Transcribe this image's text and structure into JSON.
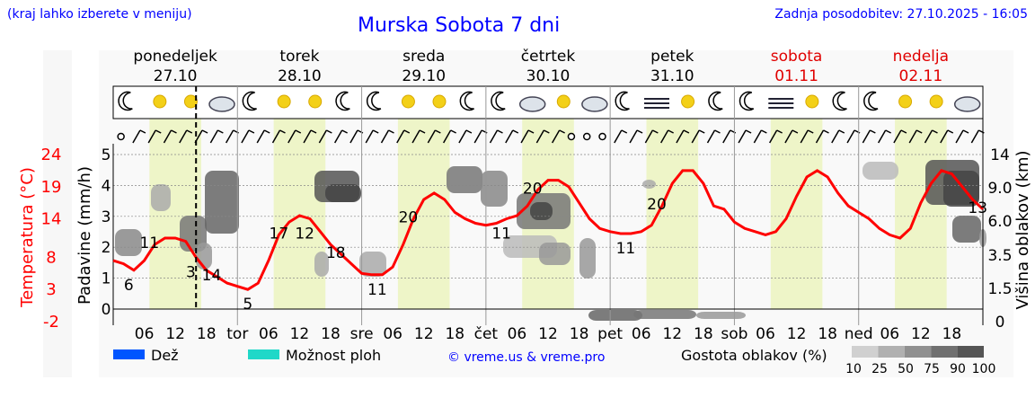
{
  "header": {
    "left_note": "(kraj lahko izberete v meniju)",
    "title": "Murska Sobota 7 dni",
    "updated": "Zadnja posodobitev: 27.10.2025 - 16:05"
  },
  "colors": {
    "title": "#0000ff",
    "weekday": "#000000",
    "weekend": "#e00000",
    "temperature": "#ff0000",
    "daytime_band": "#eef5c8",
    "rain": "#0055ff",
    "storm": "#20d8c8"
  },
  "chart_data": {
    "type": "line",
    "days": [
      {
        "name": "ponedeljek",
        "date": "27.10",
        "weekend": false
      },
      {
        "name": "torek",
        "date": "28.10",
        "weekend": false
      },
      {
        "name": "sreda",
        "date": "29.10",
        "weekend": false
      },
      {
        "name": "četrtek",
        "date": "30.10",
        "weekend": false
      },
      {
        "name": "petek",
        "date": "31.10",
        "weekend": false
      },
      {
        "name": "sobota",
        "date": "01.11",
        "weekend": true
      },
      {
        "name": "nedelja",
        "date": "02.11",
        "weekend": true
      }
    ],
    "x_tick_labels": [
      "06",
      "12",
      "18",
      "tor",
      "06",
      "12",
      "18",
      "sre",
      "06",
      "12",
      "18",
      "čet",
      "06",
      "12",
      "18",
      "pet",
      "06",
      "12",
      "18",
      "sob",
      "06",
      "12",
      "18",
      "ned",
      "06",
      "12",
      "18"
    ],
    "left_axis_precip": {
      "label": "Padavine (mm/h)",
      "ticks": [
        0,
        1,
        2,
        3,
        4,
        5
      ],
      "range": [
        0,
        5
      ]
    },
    "left_axis_temp": {
      "label": "Temperatura (°C)",
      "ticks": [
        -2,
        3,
        8,
        14,
        19,
        24
      ]
    },
    "right_axis": {
      "label": "Višina oblakov (km)",
      "ticks": [
        "0",
        "1.5",
        "3.5",
        "6.0",
        "9.0",
        "14"
      ]
    },
    "temperature_series": {
      "name": "Temperatura",
      "hours": [
        0,
        2,
        4,
        6,
        8,
        10,
        12,
        14,
        16,
        18,
        20,
        22,
        24,
        26,
        28,
        30,
        32,
        34,
        36,
        38,
        40,
        42,
        44,
        46,
        48,
        50,
        52,
        54,
        56,
        58,
        60,
        62,
        64,
        66,
        68,
        70,
        72,
        74,
        76,
        78,
        80,
        82,
        84,
        86,
        88,
        90,
        92,
        94,
        96,
        98,
        100,
        102,
        104,
        106,
        108,
        110,
        112,
        114,
        116,
        118,
        120,
        122,
        124,
        126,
        128,
        130,
        132,
        134,
        136,
        138,
        140,
        142,
        144,
        146,
        148,
        150,
        152,
        154,
        156,
        158,
        160,
        162,
        164,
        166,
        168
      ],
      "values": [
        7.5,
        7,
        6,
        7.5,
        10,
        11,
        11,
        10.5,
        8,
        6,
        5,
        4,
        3.5,
        3,
        4,
        7.5,
        11.5,
        13.5,
        14.5,
        14,
        12,
        10,
        8.5,
        7,
        5.5,
        5.3,
        5.3,
        6.5,
        10,
        14,
        17,
        18,
        17,
        15,
        14,
        13.3,
        13,
        13.3,
        14,
        14.5,
        16,
        18.5,
        20,
        20,
        19,
        16.5,
        14,
        12.5,
        12,
        11.7,
        11.7,
        12,
        13,
        16,
        19.5,
        21.5,
        21.5,
        19.5,
        16,
        15.5,
        13.5,
        12.5,
        12,
        11.5,
        12,
        14,
        17.5,
        20.5,
        21.5,
        20.5,
        18,
        16,
        15,
        14,
        12.5,
        11.5,
        11,
        12.5,
        16.5,
        19.5,
        21.5,
        21,
        19,
        17,
        15.5
      ],
      "point_labels": [
        {
          "h": 7,
          "v": "11"
        },
        {
          "h": 3,
          "v": "6"
        },
        {
          "h": 15,
          "v": "3"
        },
        {
          "h": 19,
          "v": "14"
        },
        {
          "h": 26,
          "v": "5"
        },
        {
          "h": 32,
          "v": "17"
        },
        {
          "h": 37,
          "v": "12"
        },
        {
          "h": 43,
          "v": "18"
        },
        {
          "h": 51,
          "v": "11"
        },
        {
          "h": 57,
          "v": "20"
        },
        {
          "h": 75,
          "v": "11"
        },
        {
          "h": 81,
          "v": "20"
        },
        {
          "h": 99,
          "v": "11"
        },
        {
          "h": 105,
          "v": "20"
        },
        {
          "h": 167,
          "v": "13"
        }
      ]
    },
    "now_hour": 16,
    "legend": {
      "rain": "Dež",
      "storm": "Možnost ploh",
      "credit": "© vreme.us & vreme.pro",
      "cloud_density": "Gostota oblakov (%)",
      "cloud_levels": [
        "10",
        "25",
        "50",
        "75",
        "90",
        "100"
      ]
    }
  }
}
